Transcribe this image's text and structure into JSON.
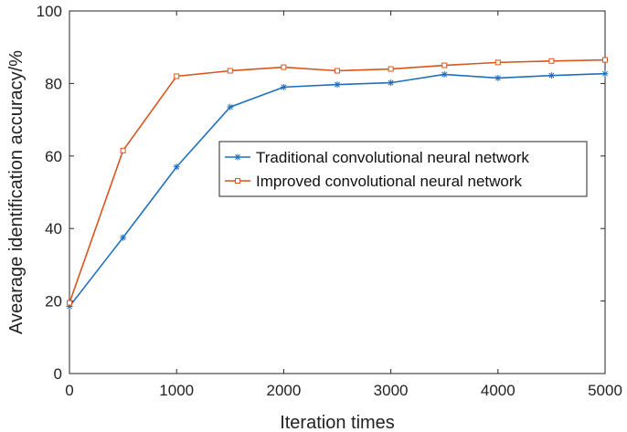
{
  "chart_data": {
    "type": "line",
    "title": "",
    "xlabel": "Iteration times",
    "ylabel": "Avearage identification accuracy/%",
    "xlim": [
      0,
      5000
    ],
    "ylim": [
      0,
      100
    ],
    "xticks": [
      0,
      1000,
      2000,
      3000,
      4000,
      5000
    ],
    "yticks": [
      0,
      20,
      40,
      60,
      80,
      100
    ],
    "grid": false,
    "legend_position": "center-right",
    "x": [
      0,
      500,
      1000,
      1500,
      2000,
      2500,
      3000,
      3500,
      4000,
      4500,
      5000
    ],
    "series": [
      {
        "name": "Traditional convolutional neural network",
        "color": "#1f6fbf",
        "marker": "asterisk",
        "values": [
          18.5,
          37.5,
          57,
          73.5,
          79,
          79.7,
          80.2,
          82.5,
          81.5,
          82.2,
          82.7
        ]
      },
      {
        "name": "Improved convolutional neural network",
        "color": "#d9541e",
        "marker": "square",
        "values": [
          19.5,
          61.5,
          82,
          83.5,
          84.5,
          83.5,
          84,
          85,
          85.8,
          86.2,
          86.5
        ]
      }
    ]
  }
}
